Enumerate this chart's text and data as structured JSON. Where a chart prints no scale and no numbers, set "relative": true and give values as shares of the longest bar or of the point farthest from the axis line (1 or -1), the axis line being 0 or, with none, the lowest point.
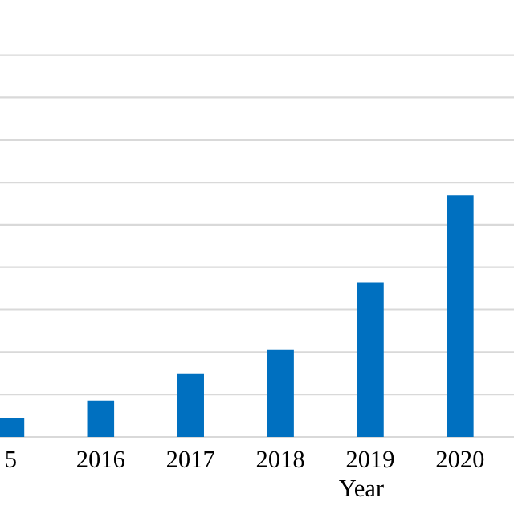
{
  "chart_data": {
    "type": "bar",
    "xlabel": "Year",
    "categories": [
      "5",
      "2016",
      "2017",
      "2018",
      "2019",
      "2020"
    ],
    "values": [
      0.08,
      0.15,
      0.26,
      0.36,
      0.64,
      1
    ],
    "color": "#0070c0",
    "relative": true,
    "grid": "y",
    "legend": false
  }
}
